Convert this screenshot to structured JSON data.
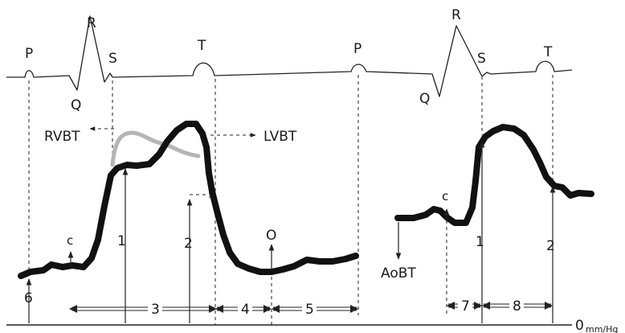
{
  "diagram": {
    "ecg_labels": {
      "p1": "P",
      "q1": "Q",
      "r1": "R",
      "s1": "S",
      "t1": "T",
      "p2": "P",
      "q2": "Q",
      "r2": "R",
      "s2": "S",
      "t2": "T"
    },
    "wave_labels": {
      "rvbt": "RVBT",
      "lvbt": "LVBT",
      "c1": "c",
      "o": "O",
      "aobt": "AoBT",
      "c2": "c"
    },
    "measure_labels": {
      "m1a": "1",
      "m2a": "2",
      "m6": "6",
      "m1b": "1",
      "m2b": "2"
    },
    "interval_labels": {
      "i3": "3",
      "i4": "4",
      "i5": "5",
      "i7": "7",
      "i8": "8"
    },
    "baseline": {
      "zero": "0",
      "unit": "mm/Hg"
    }
  }
}
